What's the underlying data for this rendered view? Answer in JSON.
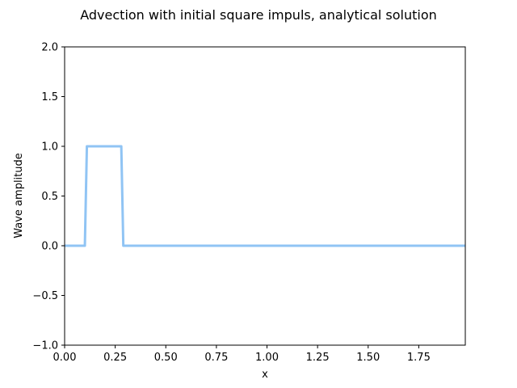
{
  "chart_data": {
    "type": "line",
    "title": "Advection with initial square impuls, analytical solution",
    "xlabel": "x",
    "ylabel": "Wave amplitude",
    "xlim": [
      0.0,
      1.98
    ],
    "ylim": [
      -1.0,
      2.0
    ],
    "grid": false,
    "x_ticks": [
      0.0,
      0.25,
      0.5,
      0.75,
      1.0,
      1.25,
      1.5,
      1.75
    ],
    "x_tick_labels": [
      "0.00",
      "0.25",
      "0.50",
      "0.75",
      "1.00",
      "1.25",
      "1.50",
      "1.75"
    ],
    "y_ticks": [
      -1.0,
      -0.5,
      0.0,
      0.5,
      1.0,
      1.5,
      2.0
    ],
    "y_tick_labels": [
      "−1.0",
      "−0.5",
      "0.0",
      "0.5",
      "1.0",
      "1.5",
      "2.0"
    ],
    "series": [
      {
        "color": "#90c4f4",
        "x": [
          0.0,
          0.1,
          0.11,
          0.28,
          0.29,
          1.98
        ],
        "y": [
          0.0,
          0.0,
          1.0,
          1.0,
          0.0,
          0.0
        ]
      }
    ]
  }
}
